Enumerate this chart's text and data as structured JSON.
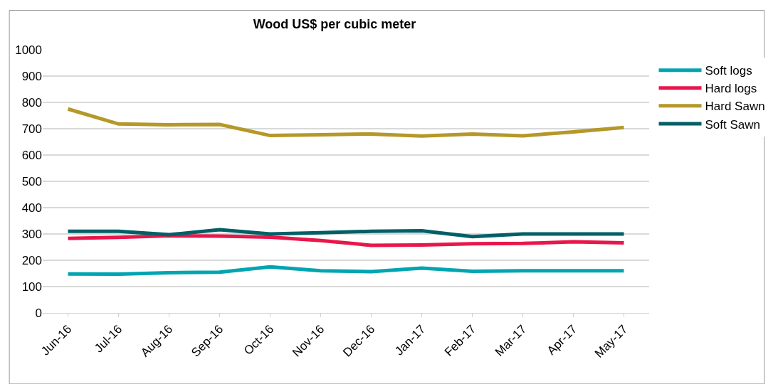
{
  "chart_data": {
    "type": "line",
    "title": "Wood US$ per cubic meter",
    "categories": [
      "Jun-16",
      "Jul-16",
      "Aug-16",
      "Sep-16",
      "Oct-16",
      "Nov-16",
      "Dec-16",
      "Jan-17",
      "Feb-17",
      "Mar-17",
      "Apr-17",
      "May-17"
    ],
    "series": [
      {
        "name": "Soft logs",
        "color": "#00a5b0",
        "values": [
          148,
          147,
          153,
          155,
          175,
          160,
          157,
          170,
          158,
          160,
          160,
          160
        ]
      },
      {
        "name": "Hard logs",
        "color": "#e8174b",
        "values": [
          283,
          287,
          293,
          292,
          288,
          275,
          257,
          258,
          263,
          264,
          270,
          266
        ]
      },
      {
        "name": "Hard Sawn",
        "color": "#b5982a",
        "values": [
          775,
          718,
          715,
          716,
          674,
          677,
          680,
          672,
          680,
          673,
          688,
          705
        ]
      },
      {
        "name": "Soft Sawn",
        "color": "#006066",
        "values": [
          310,
          310,
          297,
          316,
          300,
          305,
          310,
          312,
          290,
          300,
          300,
          300
        ]
      }
    ],
    "ylim": [
      0,
      1000
    ],
    "yticks": [
      0,
      100,
      200,
      300,
      400,
      500,
      600,
      700,
      800,
      900,
      1000
    ],
    "grid": "y",
    "legend": "right",
    "marker": "none",
    "line_style": "solid"
  }
}
